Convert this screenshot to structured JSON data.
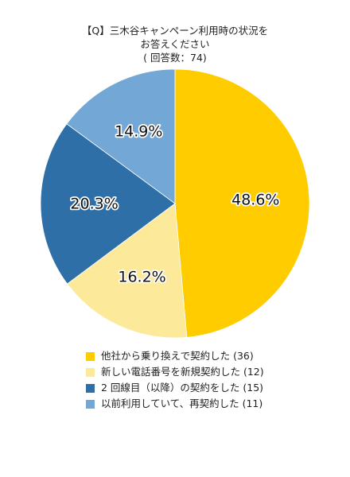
{
  "chart_data": {
    "type": "pie",
    "title_lines": [
      "【Q】三木谷キャンペーン利用時の状況を",
      "お答えください",
      "( 回答数：74)"
    ],
    "categories": [
      "他社から乗り換えで契約した (36)",
      "新しい電話番号を新規契約した (12)",
      "2 回線目（以降）の契約をした (15)",
      "以前利用していて、再契約した (11)"
    ],
    "values": [
      48.6,
      16.2,
      20.3,
      14.9
    ],
    "counts": [
      36,
      12,
      15,
      11
    ],
    "value_labels": [
      "48.6%",
      "16.2%",
      "20.3%",
      "14.9%"
    ],
    "colors": [
      "#ffcc00",
      "#fde99a",
      "#2e6fa7",
      "#72a7d6"
    ],
    "legend_position": "bottom",
    "start_angle": "top, clockwise"
  }
}
